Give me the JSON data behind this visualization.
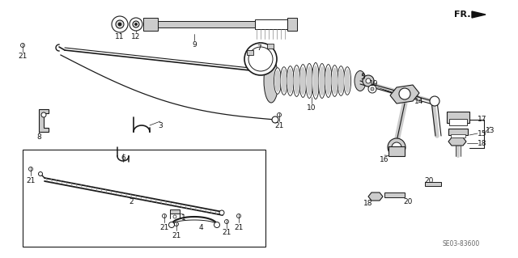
{
  "bg_color": "#ffffff",
  "line_color": "#1a1a1a",
  "diagram_code": "SE03-83600",
  "gray": "#888888",
  "lgray": "#cccccc",
  "dgray": "#555555"
}
